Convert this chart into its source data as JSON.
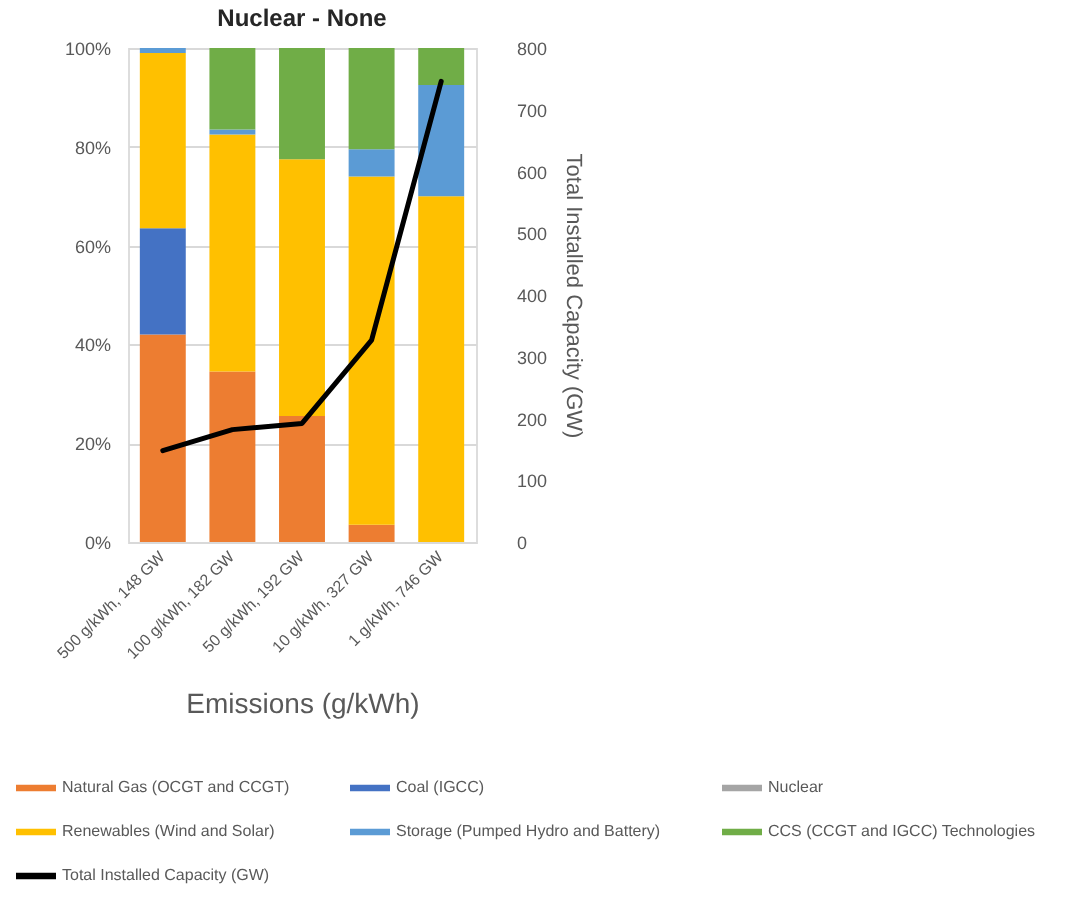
{
  "chart_data": {
    "type": "bar",
    "stacked": true,
    "title": "Nuclear - None",
    "xlabel": "Emissions (g/kWh)",
    "y2label": "Total Installed Capacity (GW)",
    "categories": [
      "500 g/kWh, 148 GW",
      "100 g/kWh, 182 GW",
      "50 g/kWh, 192 GW",
      "10 g/kWh, 327 GW",
      "1 g/kWh, 746 GW"
    ],
    "series": [
      {
        "name": "Natural Gas (OCGT and CCGT)",
        "color": "#ed7d31",
        "values": [
          42,
          34.5,
          25.5,
          3.5,
          0
        ]
      },
      {
        "name": "Coal (IGCC)",
        "color": "#4472c4",
        "values": [
          21.5,
          0,
          0,
          0,
          0
        ]
      },
      {
        "name": "Nuclear",
        "color": "#a5a5a5",
        "values": [
          0,
          0,
          0,
          0,
          0
        ]
      },
      {
        "name": "Renewables (Wind and Solar)",
        "color": "#ffc000",
        "values": [
          35.5,
          48,
          52,
          70.5,
          70
        ]
      },
      {
        "name": "Storage (Pumped Hydro and Battery)",
        "color": "#5b9bd5",
        "values": [
          1,
          1,
          0,
          5.5,
          22.5
        ]
      },
      {
        "name": "CCS (CCGT and IGCC) Technologies",
        "color": "#70ad47",
        "values": [
          0,
          16.5,
          22.5,
          20.5,
          7.5
        ]
      },
      {
        "name": "Total Installed Capacity (GW)",
        "type": "line",
        "axis": "y2",
        "color": "#000000",
        "values": [
          148,
          182,
          192,
          327,
          746
        ]
      }
    ],
    "ylim": [
      0,
      100
    ],
    "yticks": [
      {
        "value": 0,
        "label": "0%"
      },
      {
        "value": 20,
        "label": "20%"
      },
      {
        "value": 40,
        "label": "40%"
      },
      {
        "value": 60,
        "label": "60%"
      },
      {
        "value": 80,
        "label": "80%"
      },
      {
        "value": 100,
        "label": "100%"
      }
    ],
    "y2lim": [
      0,
      800
    ],
    "y2ticks": [
      0,
      100,
      200,
      300,
      400,
      500,
      600,
      700,
      800
    ],
    "grid": "y",
    "legend": "bottom"
  }
}
